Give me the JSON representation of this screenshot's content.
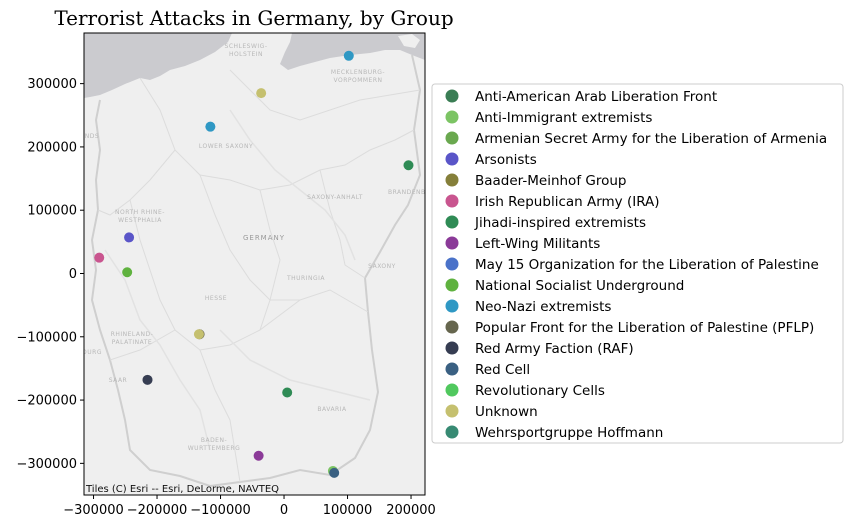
{
  "chart_data": {
    "type": "scatter",
    "title": "Terrorist Attacks in Germany, by Group",
    "xlabel": "",
    "ylabel": "",
    "xlim": [
      -315000,
      222000
    ],
    "ylim": [
      -350000,
      380000
    ],
    "xticks": [
      -300000,
      -200000,
      -100000,
      0,
      100000,
      200000
    ],
    "yticks": [
      -300000,
      -200000,
      -100000,
      0,
      100000,
      200000,
      300000
    ],
    "xtick_labels": [
      "−300000",
      "−200000",
      "−100000",
      "0",
      "100000",
      "200000"
    ],
    "ytick_labels": [
      "−300000",
      "−200000",
      "−100000",
      "0",
      "100000",
      "200000",
      "300000"
    ],
    "grid": false,
    "legend_position": "right",
    "basemap": {
      "attribution": "Tiles (C) Esri -- Esri, DeLorme, NAVTEQ",
      "labels": [
        "SCHLESWIG-",
        "HOLSTEIN",
        "MECKLENBURG-",
        "VORPOMMERN",
        "LOWER SAXONY",
        "BRANDENB.",
        "NORTH RHINE-",
        "WESTPHALIA",
        "SAXONY-ANHALT",
        "GERMANY",
        "HESSE",
        "THURINGIA",
        "SAXONY",
        "RHINELAND-",
        "PALATINATE",
        "SAAR",
        "BAVARIA",
        "BADEN-",
        "WURTTEMBERG",
        "NDS",
        "OURG"
      ]
    },
    "series": [
      {
        "name": "Anti-American Arab Liberation Front",
        "color": "#3a7d54",
        "points": []
      },
      {
        "name": "Anti-Immigrant extremists",
        "color": "#7cc464",
        "points": [
          [
            77000,
            -312000
          ]
        ]
      },
      {
        "name": "Armenian Secret Army for the Liberation of Armenia",
        "color": "#6aa84f",
        "points": []
      },
      {
        "name": "Arsonists",
        "color": "#5a55c8",
        "points": [
          [
            -244000,
            57000
          ]
        ]
      },
      {
        "name": "Baader-Meinhof Group",
        "color": "#857f3a",
        "points": []
      },
      {
        "name": "Irish Republican Army (IRA)",
        "color": "#c9558f",
        "points": [
          [
            -291000,
            25000
          ]
        ]
      },
      {
        "name": "Jihadi-inspired extremists",
        "color": "#2f8b55",
        "points": [
          [
            196000,
            171000
          ],
          [
            5000,
            -188000
          ]
        ]
      },
      {
        "name": "Left-Wing Militants",
        "color": "#8b3a98",
        "points": [
          [
            -40000,
            -288000
          ]
        ]
      },
      {
        "name": "May 15 Organization for the Liberation of Palestine",
        "color": "#4a72c9",
        "points": []
      },
      {
        "name": "National Socialist Underground",
        "color": "#5fb23f",
        "points": [
          [
            -247000,
            2000
          ]
        ]
      },
      {
        "name": "Neo-Nazi extremists",
        "color": "#2f98c4",
        "points": [
          [
            -116000,
            232000
          ],
          [
            102000,
            344000
          ]
        ]
      },
      {
        "name": "Popular Front for the Liberation of Palestine (PFLP)",
        "color": "#66664e",
        "points": [
          [
            -133000,
            -96000
          ]
        ]
      },
      {
        "name": "Red Army Faction (RAF)",
        "color": "#363d52",
        "points": [
          [
            -215000,
            -168000
          ]
        ]
      },
      {
        "name": "Red Cell",
        "color": "#3a6082",
        "points": [
          [
            79000,
            -315000
          ]
        ]
      },
      {
        "name": "Revolutionary Cells",
        "color": "#50c85e",
        "points": []
      },
      {
        "name": "Unknown",
        "color": "#c5c06f",
        "points": [
          [
            -36000,
            285000
          ],
          [
            -134000,
            -96000
          ]
        ]
      },
      {
        "name": "Wehrsportgruppe Hoffmann",
        "color": "#378a73",
        "points": []
      }
    ]
  }
}
